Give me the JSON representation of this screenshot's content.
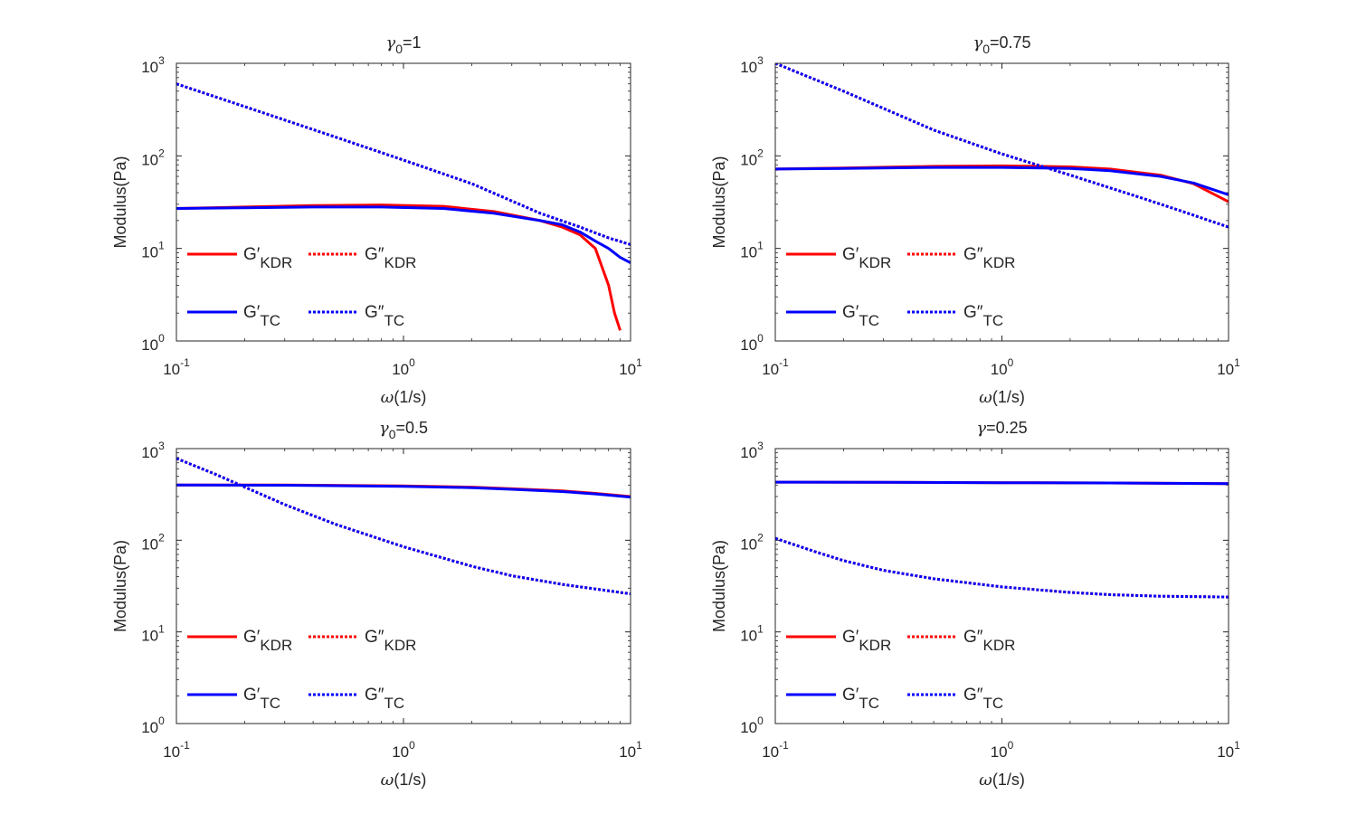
{
  "chart_data": [
    {
      "type": "line",
      "title": "γ0=1",
      "title_parts": {
        "symbol": "γ",
        "subscript": "0",
        "rest": "=1"
      },
      "xlabel": "ω(1/s)",
      "xlabel_parts": {
        "symbol": "ω",
        "rest": "(1/s)"
      },
      "ylabel": "Modulus(Pa)",
      "xscale": "log",
      "yscale": "log",
      "xlim": [
        0.1,
        10
      ],
      "ylim": [
        1,
        1000
      ],
      "xticks": [
        {
          "base": "10",
          "exp": "-1",
          "value": 0.1
        },
        {
          "base": "10",
          "exp": "0",
          "value": 1
        },
        {
          "base": "10",
          "exp": "1",
          "value": 10
        }
      ],
      "yticks": [
        {
          "base": "10",
          "exp": "0",
          "value": 1
        },
        {
          "base": "10",
          "exp": "1",
          "value": 10
        },
        {
          "base": "10",
          "exp": "2",
          "value": 100
        },
        {
          "base": "10",
          "exp": "3",
          "value": 1000
        }
      ],
      "series": [
        {
          "name": "G′KDR",
          "color": "#ff0000",
          "style": "solid",
          "x": [
            0.1,
            0.2,
            0.4,
            0.8,
            1.5,
            2.5,
            4.0,
            5.0,
            6.0,
            7.0,
            8.0,
            8.5,
            9.0
          ],
          "y": [
            27,
            28,
            29,
            29.5,
            28.5,
            25,
            20,
            17,
            14,
            10,
            4,
            2,
            1.3
          ]
        },
        {
          "name": "G″KDR",
          "color": "#ff0000",
          "style": "dotted",
          "x": [
            0.1,
            0.2,
            0.5,
            1,
            2,
            4,
            6,
            8,
            10
          ],
          "y": [
            600,
            340,
            160,
            90,
            50,
            24,
            17,
            13,
            11
          ]
        },
        {
          "name": "G′TC",
          "color": "#0000ff",
          "style": "solid",
          "x": [
            0.1,
            0.2,
            0.4,
            0.8,
            1.5,
            2.5,
            4.0,
            5.0,
            6.0,
            7.0,
            8.0,
            9.0,
            10
          ],
          "y": [
            27,
            27.5,
            28,
            28,
            27,
            24,
            20,
            18,
            15,
            12,
            10,
            8,
            7
          ]
        },
        {
          "name": "G″TC",
          "color": "#0000ff",
          "style": "dotted",
          "x": [
            0.1,
            0.2,
            0.5,
            1,
            2,
            4,
            6,
            8,
            10
          ],
          "y": [
            600,
            340,
            160,
            90,
            50,
            24,
            17,
            13,
            11
          ]
        }
      ],
      "legend": {
        "placement": "lower-left",
        "entries": [
          {
            "base": "G",
            "mark": "′",
            "sub": "KDR",
            "color": "#ff0000",
            "style": "solid"
          },
          {
            "base": "G",
            "mark": "″",
            "sub": "KDR",
            "color": "#ff0000",
            "style": "dotted"
          },
          {
            "base": "G",
            "mark": "′",
            "sub": "TC",
            "color": "#0000ff",
            "style": "solid"
          },
          {
            "base": "G",
            "mark": "″",
            "sub": "TC",
            "color": "#0000ff",
            "style": "dotted"
          }
        ]
      }
    },
    {
      "type": "line",
      "title": "γ0=0.75",
      "title_parts": {
        "symbol": "γ",
        "subscript": "0",
        "rest": "=0.75"
      },
      "xlabel": "ω(1/s)",
      "xlabel_parts": {
        "symbol": "ω",
        "rest": "(1/s)"
      },
      "ylabel": "Modulus(Pa)",
      "xscale": "log",
      "yscale": "log",
      "xlim": [
        0.1,
        10
      ],
      "ylim": [
        1,
        1000
      ],
      "xticks": [
        {
          "base": "10",
          "exp": "-1",
          "value": 0.1
        },
        {
          "base": "10",
          "exp": "0",
          "value": 1
        },
        {
          "base": "10",
          "exp": "1",
          "value": 10
        }
      ],
      "yticks": [
        {
          "base": "10",
          "exp": "0",
          "value": 1
        },
        {
          "base": "10",
          "exp": "1",
          "value": 10
        },
        {
          "base": "10",
          "exp": "2",
          "value": 100
        },
        {
          "base": "10",
          "exp": "3",
          "value": 1000
        }
      ],
      "series": [
        {
          "name": "G′KDR",
          "color": "#ff0000",
          "style": "solid",
          "x": [
            0.1,
            0.2,
            0.5,
            1,
            2,
            3,
            5,
            7,
            10
          ],
          "y": [
            72,
            74,
            77,
            78,
            76,
            72,
            62,
            50,
            32
          ]
        },
        {
          "name": "G″KDR",
          "color": "#ff0000",
          "style": "dotted",
          "x": [
            0.1,
            0.2,
            0.5,
            1,
            1.5,
            2,
            4,
            6,
            10
          ],
          "y": [
            1000,
            500,
            190,
            105,
            77,
            62,
            36,
            26,
            17
          ]
        },
        {
          "name": "G′TC",
          "color": "#0000ff",
          "style": "solid",
          "x": [
            0.1,
            0.2,
            0.5,
            1,
            2,
            3,
            5,
            7,
            10
          ],
          "y": [
            72,
            73,
            75,
            75,
            73,
            69,
            60,
            51,
            38
          ]
        },
        {
          "name": "G″TC",
          "color": "#0000ff",
          "style": "dotted",
          "x": [
            0.1,
            0.2,
            0.5,
            1,
            1.5,
            2,
            4,
            6,
            10
          ],
          "y": [
            1000,
            500,
            190,
            105,
            77,
            62,
            36,
            26,
            17
          ]
        }
      ],
      "legend": {
        "placement": "lower-left",
        "entries": [
          {
            "base": "G",
            "mark": "′",
            "sub": "KDR",
            "color": "#ff0000",
            "style": "solid"
          },
          {
            "base": "G",
            "mark": "″",
            "sub": "KDR",
            "color": "#ff0000",
            "style": "dotted"
          },
          {
            "base": "G",
            "mark": "′",
            "sub": "TC",
            "color": "#0000ff",
            "style": "solid"
          },
          {
            "base": "G",
            "mark": "″",
            "sub": "TC",
            "color": "#0000ff",
            "style": "dotted"
          }
        ]
      }
    },
    {
      "type": "line",
      "title": "γ0=0.5",
      "title_parts": {
        "symbol": "γ",
        "subscript": "0",
        "rest": "=0.5"
      },
      "xlabel": "ω(1/s)",
      "xlabel_parts": {
        "symbol": "ω",
        "rest": "(1/s)"
      },
      "ylabel": "Modulus(Pa)",
      "xscale": "log",
      "yscale": "log",
      "xlim": [
        0.1,
        10
      ],
      "ylim": [
        1,
        1000
      ],
      "xticks": [
        {
          "base": "10",
          "exp": "-1",
          "value": 0.1
        },
        {
          "base": "10",
          "exp": "0",
          "value": 1
        },
        {
          "base": "10",
          "exp": "1",
          "value": 10
        }
      ],
      "yticks": [
        {
          "base": "10",
          "exp": "0",
          "value": 1
        },
        {
          "base": "10",
          "exp": "1",
          "value": 10
        },
        {
          "base": "10",
          "exp": "2",
          "value": 100
        },
        {
          "base": "10",
          "exp": "3",
          "value": 1000
        }
      ],
      "series": [
        {
          "name": "G′KDR",
          "color": "#ff0000",
          "style": "solid",
          "x": [
            0.1,
            0.3,
            1,
            2,
            3,
            5,
            7,
            10
          ],
          "y": [
            400,
            400,
            392,
            380,
            365,
            345,
            325,
            300
          ]
        },
        {
          "name": "G″KDR",
          "color": "#ff0000",
          "style": "dotted",
          "x": [
            0.1,
            0.15,
            0.2,
            0.3,
            0.5,
            1,
            2,
            3,
            5,
            10
          ],
          "y": [
            780,
            520,
            380,
            245,
            150,
            85,
            52,
            41,
            33,
            26
          ]
        },
        {
          "name": "G′TC",
          "color": "#0000ff",
          "style": "solid",
          "x": [
            0.1,
            0.3,
            1,
            2,
            3,
            5,
            7,
            10
          ],
          "y": [
            400,
            398,
            388,
            375,
            360,
            340,
            320,
            296
          ]
        },
        {
          "name": "G″TC",
          "color": "#0000ff",
          "style": "dotted",
          "x": [
            0.1,
            0.15,
            0.2,
            0.3,
            0.5,
            1,
            2,
            3,
            5,
            10
          ],
          "y": [
            780,
            520,
            380,
            245,
            150,
            85,
            52,
            41,
            33,
            26
          ]
        }
      ],
      "legend": {
        "placement": "lower-left",
        "entries": [
          {
            "base": "G",
            "mark": "′",
            "sub": "KDR",
            "color": "#ff0000",
            "style": "solid"
          },
          {
            "base": "G",
            "mark": "″",
            "sub": "KDR",
            "color": "#ff0000",
            "style": "dotted"
          },
          {
            "base": "G",
            "mark": "′",
            "sub": "TC",
            "color": "#0000ff",
            "style": "solid"
          },
          {
            "base": "G",
            "mark": "″",
            "sub": "TC",
            "color": "#0000ff",
            "style": "dotted"
          }
        ]
      }
    },
    {
      "type": "line",
      "title": "γ=0.25",
      "title_parts": {
        "symbol": "γ",
        "subscript": "",
        "rest": "=0.25"
      },
      "xlabel": "ω(1/s)",
      "xlabel_parts": {
        "symbol": "ω",
        "rest": "(1/s)"
      },
      "ylabel": "Modulus(Pa)",
      "xscale": "log",
      "yscale": "log",
      "xlim": [
        0.1,
        10
      ],
      "ylim": [
        1,
        1000
      ],
      "xticks": [
        {
          "base": "10",
          "exp": "-1",
          "value": 0.1
        },
        {
          "base": "10",
          "exp": "0",
          "value": 1
        },
        {
          "base": "10",
          "exp": "1",
          "value": 10
        }
      ],
      "yticks": [
        {
          "base": "10",
          "exp": "0",
          "value": 1
        },
        {
          "base": "10",
          "exp": "1",
          "value": 10
        },
        {
          "base": "10",
          "exp": "2",
          "value": 100
        },
        {
          "base": "10",
          "exp": "3",
          "value": 1000
        }
      ],
      "series": [
        {
          "name": "G′KDR",
          "color": "#ff0000",
          "style": "solid",
          "x": [
            0.1,
            0.3,
            1,
            3,
            10
          ],
          "y": [
            430,
            428,
            425,
            422,
            415
          ]
        },
        {
          "name": "G″KDR",
          "color": "#ff0000",
          "style": "dotted",
          "x": [
            0.1,
            0.15,
            0.2,
            0.3,
            0.5,
            1,
            2,
            3,
            5,
            10
          ],
          "y": [
            105,
            75,
            60,
            47,
            38,
            31,
            27,
            25.5,
            24.5,
            24
          ]
        },
        {
          "name": "G′TC",
          "color": "#0000ff",
          "style": "solid",
          "x": [
            0.1,
            0.3,
            1,
            3,
            10
          ],
          "y": [
            430,
            428,
            425,
            422,
            415
          ]
        },
        {
          "name": "G″TC",
          "color": "#0000ff",
          "style": "dotted",
          "x": [
            0.1,
            0.15,
            0.2,
            0.3,
            0.5,
            1,
            2,
            3,
            5,
            10
          ],
          "y": [
            105,
            75,
            60,
            47,
            38,
            31,
            27,
            25.5,
            24.5,
            24
          ]
        }
      ],
      "legend": {
        "placement": "lower-left",
        "entries": [
          {
            "base": "G",
            "mark": "′",
            "sub": "KDR",
            "color": "#ff0000",
            "style": "solid"
          },
          {
            "base": "G",
            "mark": "″",
            "sub": "KDR",
            "color": "#ff0000",
            "style": "dotted"
          },
          {
            "base": "G",
            "mark": "′",
            "sub": "TC",
            "color": "#0000ff",
            "style": "solid"
          },
          {
            "base": "G",
            "mark": "″",
            "sub": "TC",
            "color": "#0000ff",
            "style": "dotted"
          }
        ]
      }
    }
  ]
}
